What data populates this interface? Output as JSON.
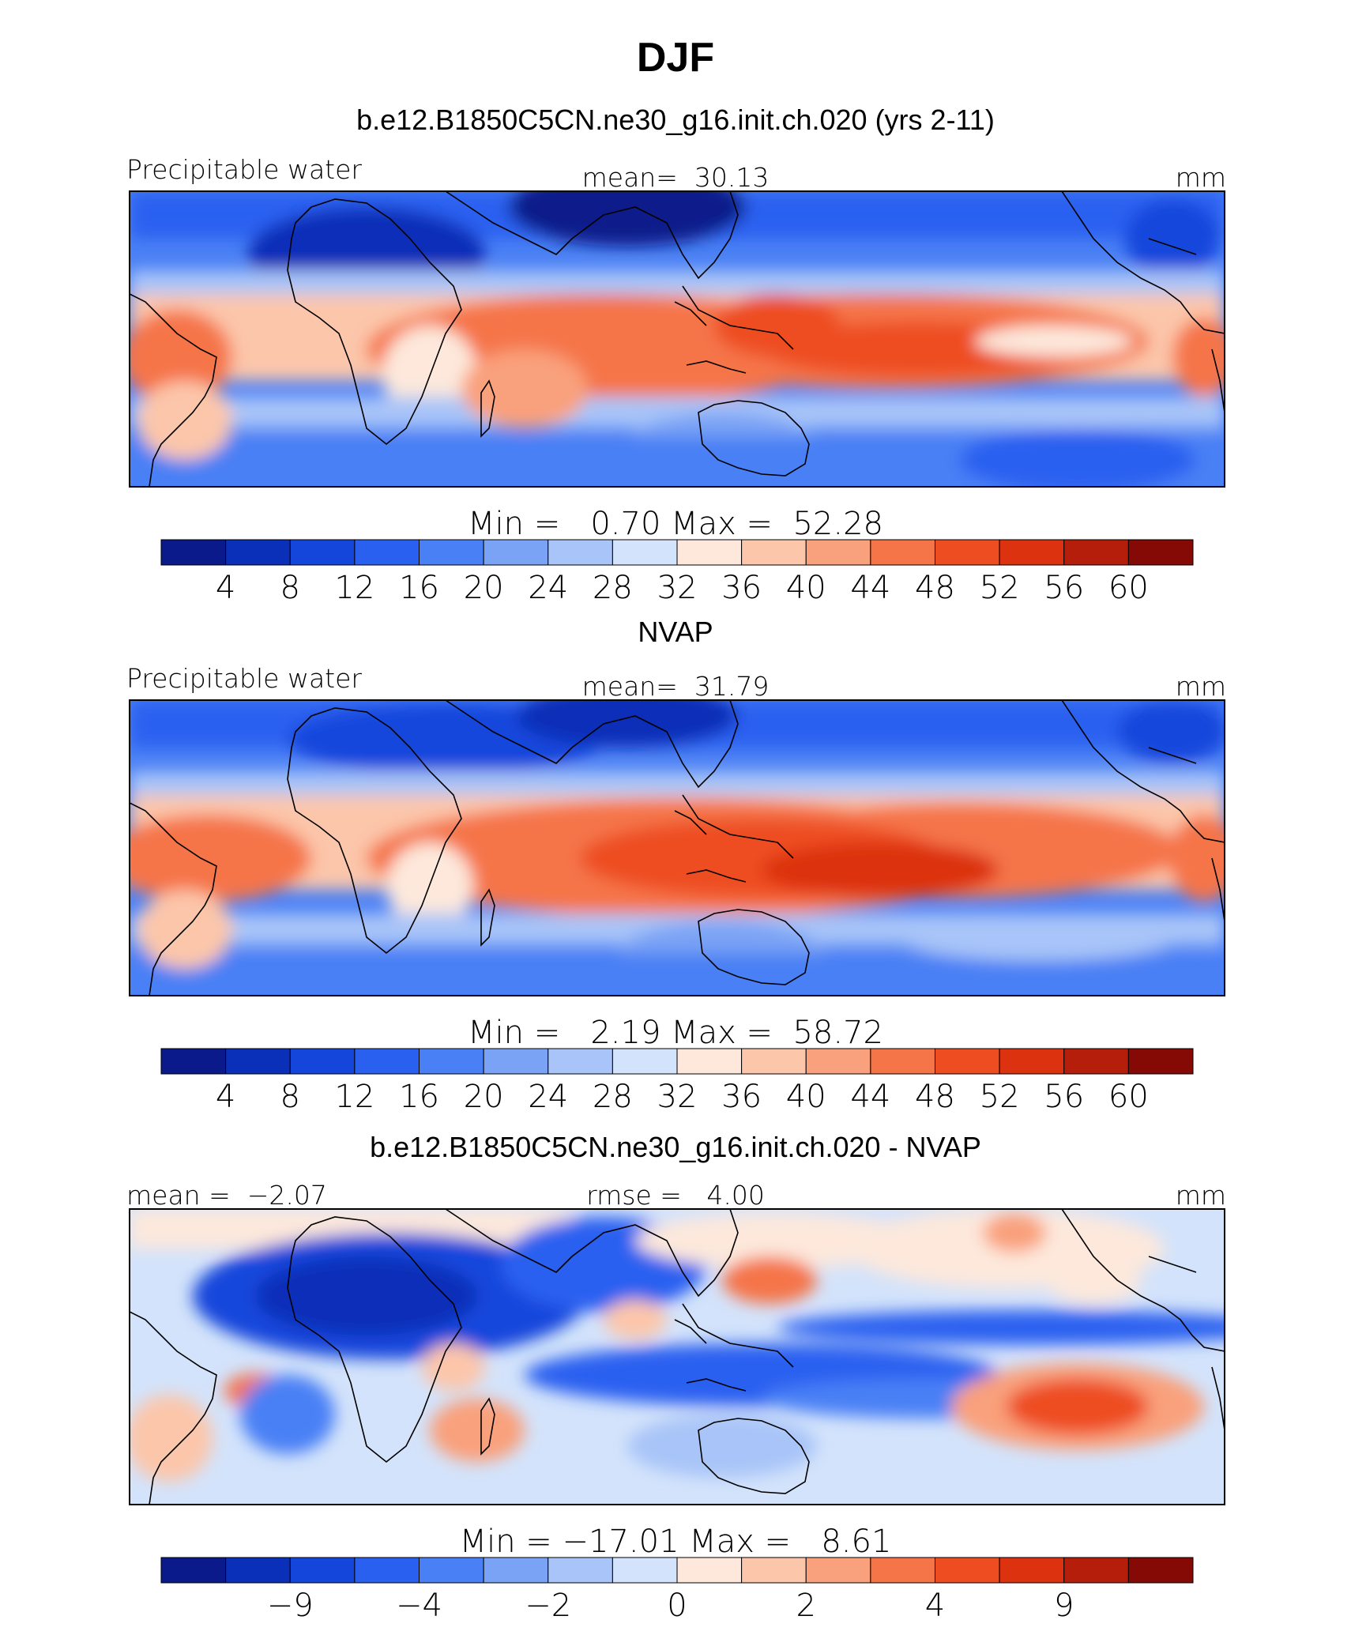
{
  "figure": {
    "title": "DJF"
  },
  "colorbar_colors": [
    "#0a1a8a",
    "#0a2fb8",
    "#1546dc",
    "#2a60f0",
    "#4a80f5",
    "#7aa3f5",
    "#a8c4f8",
    "#d3e3fb",
    "#fde8db",
    "#fcc6aa",
    "#f9a07c",
    "#f57548",
    "#ee4d22",
    "#dc3210",
    "#b51e0b",
    "#850a05"
  ],
  "chart_data": [
    {
      "type": "heatmap",
      "id": "panel1",
      "title": "b.e12.B1850C5CN.ne30_g16.init.ch.020 (yrs 2-11)",
      "left_label": "Precipitable water",
      "center_label": "mean=  30.13",
      "right_label": "mm",
      "stats": "Min =   0.70 Max =  52.28",
      "min": 0.7,
      "max": 52.28,
      "mean": 30.13,
      "colorbar_ticks": [
        "4",
        "8",
        "12",
        "16",
        "20",
        "24",
        "28",
        "32",
        "36",
        "40",
        "44",
        "48",
        "52",
        "56",
        "60"
      ],
      "levels": [
        4,
        8,
        12,
        16,
        20,
        24,
        28,
        32,
        36,
        40,
        44,
        48,
        52,
        56,
        60
      ]
    },
    {
      "type": "heatmap",
      "id": "panel2",
      "title": "NVAP",
      "left_label": "Precipitable water",
      "center_label": "mean=  31.79",
      "right_label": "mm",
      "stats": "Min =   2.19 Max =  58.72",
      "min": 2.19,
      "max": 58.72,
      "mean": 31.79,
      "colorbar_ticks": [
        "4",
        "8",
        "12",
        "16",
        "20",
        "24",
        "28",
        "32",
        "36",
        "40",
        "44",
        "48",
        "52",
        "56",
        "60"
      ],
      "levels": [
        4,
        8,
        12,
        16,
        20,
        24,
        28,
        32,
        36,
        40,
        44,
        48,
        52,
        56,
        60
      ]
    },
    {
      "type": "heatmap",
      "id": "panel3",
      "title": "b.e12.B1850C5CN.ne30_g16.init.ch.020 - NVAP",
      "left_label": "mean =  −2.07",
      "center_label": "rmse =   4.00",
      "right_label": "mm",
      "stats": "Min = −17.01 Max =   8.61",
      "min": -17.01,
      "max": 8.61,
      "mean": -2.07,
      "rmse": 4.0,
      "colorbar_ticks": [
        "−9",
        "−4",
        "−2",
        "0",
        "2",
        "4",
        "9"
      ],
      "levels": [
        -9,
        -4,
        -2,
        0,
        2,
        4,
        9
      ]
    }
  ]
}
